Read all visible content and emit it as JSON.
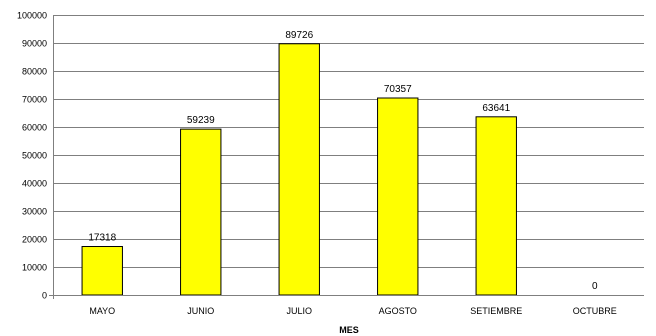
{
  "chart_data": {
    "type": "bar",
    "title": "",
    "xlabel": "MES",
    "ylabel": "",
    "categories": [
      "MAYO",
      "JUNIO",
      "JULIO",
      "AGOSTO",
      "SETIEMBRE",
      "OCTUBRE"
    ],
    "values": [
      17318,
      59239,
      89726,
      70357,
      63641,
      0
    ],
    "data_labels": [
      "17318",
      "59239",
      "89726",
      "70357",
      "63641",
      "0"
    ],
    "ylim": [
      0,
      100000
    ],
    "yticks": [
      "0",
      "10000",
      "20000",
      "30000",
      "40000",
      "50000",
      "60000",
      "70000",
      "80000",
      "90000",
      "100000"
    ],
    "ytick_values": [
      0,
      10000,
      20000,
      30000,
      40000,
      50000,
      60000,
      70000,
      80000,
      90000,
      100000
    ],
    "grid": true,
    "legend": "none",
    "colors": {
      "bar_fill": "#ffff00",
      "bar_stroke": "#000000",
      "grid": "#7f7f7f",
      "axis": "#7f7f7f"
    }
  }
}
